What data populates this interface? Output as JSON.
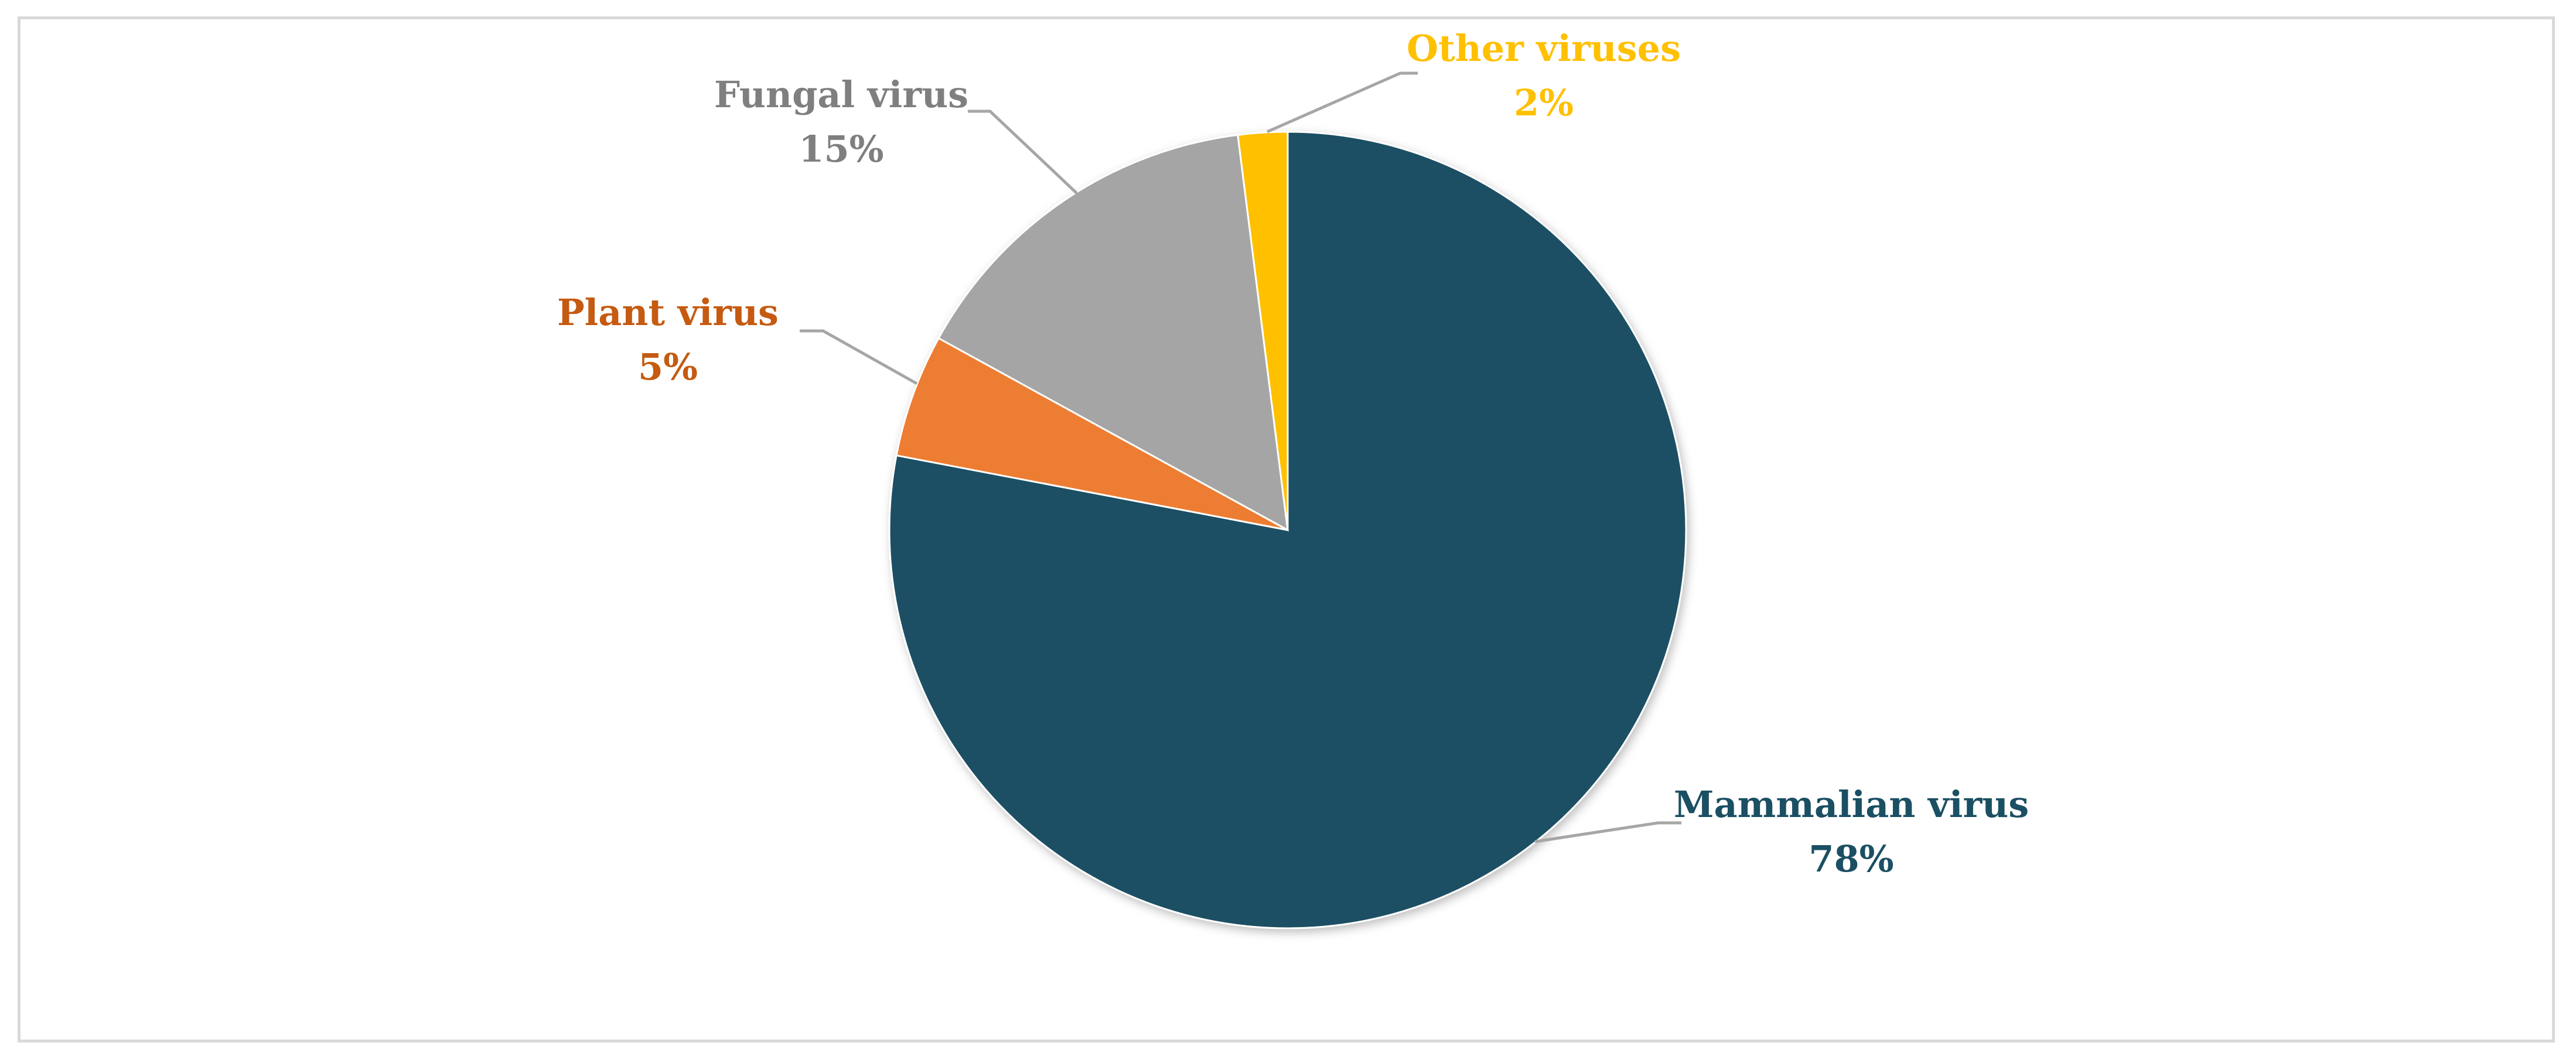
{
  "chart_data": {
    "type": "pie",
    "title": "",
    "slices": [
      {
        "label": "Mammalian  virus",
        "value": 78,
        "display": "78%",
        "color": "#1b5064"
      },
      {
        "label": "Plant virus",
        "value": 5,
        "display": "5%",
        "color": "#ed7d31"
      },
      {
        "label": "Fungal virus",
        "value": 15,
        "display": "15%",
        "color": "#a5a5a5"
      },
      {
        "label": "Other viruses",
        "value": 2,
        "display": "2%",
        "color": "#ffc000"
      }
    ],
    "label_colors": [
      "#1b4f63",
      "#c55a11",
      "#7f7f7f",
      "#ffc000"
    ],
    "leader_line_color": "#a6a6a6",
    "start_angle": "top, clockwise",
    "legend": "none"
  }
}
